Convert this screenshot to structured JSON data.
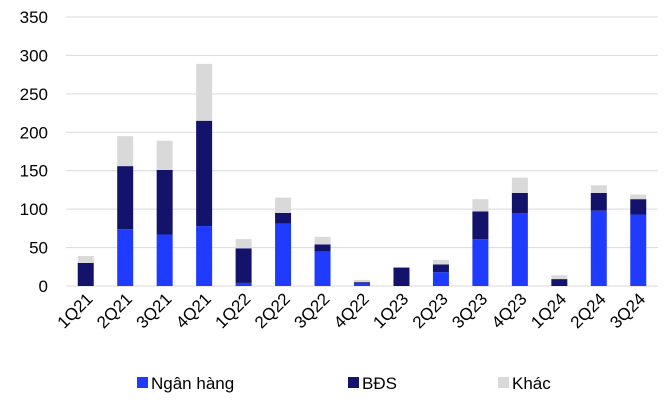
{
  "chart_data": {
    "type": "bar",
    "stacked": true,
    "title": "",
    "xlabel": "",
    "ylabel": "",
    "categories": [
      "1Q21",
      "2Q21",
      "3Q21",
      "4Q21",
      "1Q22",
      "2Q22",
      "3Q22",
      "4Q22",
      "1Q23",
      "2Q23",
      "3Q23",
      "4Q23",
      "1Q24",
      "2Q24",
      "3Q24"
    ],
    "series": [
      {
        "name": "Ngân hàng",
        "color": "#1f3bff",
        "values": [
          0,
          74,
          67,
          78,
          4,
          81,
          45,
          3,
          0,
          18,
          61,
          95,
          0,
          98,
          93
        ]
      },
      {
        "name": "BĐS",
        "color": "#13136b",
        "values": [
          30,
          82,
          84,
          137,
          45,
          14,
          9,
          2,
          24,
          10,
          36,
          26,
          9,
          23,
          20
        ]
      },
      {
        "name": "Khác",
        "color": "#d9d9d9",
        "values": [
          9,
          39,
          38,
          74,
          12,
          20,
          10,
          3,
          0,
          6,
          16,
          20,
          5,
          10,
          6
        ]
      }
    ],
    "ylim": [
      0,
      350
    ],
    "yticks": [
      0,
      50,
      100,
      150,
      200,
      250,
      300,
      350
    ],
    "grid": true,
    "legend": "bottom"
  }
}
